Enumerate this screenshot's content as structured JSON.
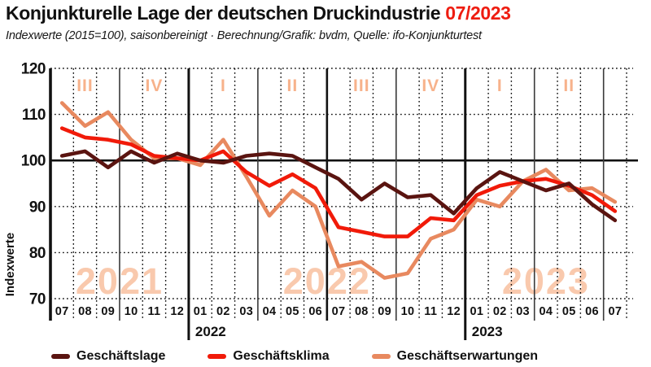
{
  "header": {
    "title": "Konjunkturelle Lage der deutschen Druckindustrie",
    "title_period": "07/2023",
    "subtitle": "Indexwerte (2015=100), saisonbereinigt · Berechnung/Grafik: bvdm, Quelle: ifo-Konjunkturtest"
  },
  "colors": {
    "accent_red": "#ee1c10",
    "text": "#111111",
    "quarter_label": "#f7b28b",
    "year_watermark": "#f9c9ad"
  },
  "chart_data": {
    "type": "line",
    "title": "Konjunkturelle Lage der deutschen Druckindustrie 07/2023",
    "subtitle": "Indexwerte (2015=100), saisonbereinigt · Berechnung/Grafik: bvdm, Quelle: ifo-Konjunkturtest",
    "ylabel": "Indexwerte",
    "ylim": [
      70,
      120
    ],
    "yticks": [
      120,
      110,
      100,
      90,
      80,
      70
    ],
    "grid": "dotted monthly/10pt grid, solid line at 100, solid quarter boundaries, thick year boundaries",
    "legend_position": "bottom",
    "x_months": [
      "07",
      "08",
      "09",
      "10",
      "11",
      "12",
      "01",
      "02",
      "03",
      "04",
      "05",
      "06",
      "07",
      "08",
      "09",
      "10",
      "11",
      "12",
      "01",
      "02",
      "03",
      "04",
      "05",
      "06",
      "07"
    ],
    "year_row_labels": [
      {
        "label": "2022",
        "boundary_index": 6
      },
      {
        "label": "2023",
        "boundary_index": 18
      }
    ],
    "quarter_labels": [
      {
        "label": "III",
        "month_index": 1
      },
      {
        "label": "IV",
        "month_index": 4
      },
      {
        "label": "I",
        "month_index": 7
      },
      {
        "label": "II",
        "month_index": 10
      },
      {
        "label": "III",
        "month_index": 13
      },
      {
        "label": "IV",
        "month_index": 16
      },
      {
        "label": "I",
        "month_index": 19
      },
      {
        "label": "II",
        "month_index": 22
      }
    ],
    "year_watermarks": [
      {
        "label": "2021",
        "span": [
          0,
          5
        ]
      },
      {
        "label": "2022",
        "span": [
          6,
          17
        ]
      },
      {
        "label": "2023",
        "span": [
          18,
          24
        ]
      }
    ],
    "boundaries": {
      "quarter_after_index": [
        2,
        8,
        14,
        20,
        23
      ],
      "halfyear_after_index": [
        11
      ],
      "year_after_index": [
        5,
        17
      ]
    },
    "series": [
      {
        "name": "Geschäftslage",
        "color": "#5a1410",
        "values": [
          101,
          102,
          98.5,
          102,
          99.5,
          101.5,
          100,
          99.5,
          101,
          101.5,
          101,
          98.5,
          96,
          91.5,
          95,
          92,
          92.5,
          88.5,
          94,
          97.5,
          95.5,
          93.5,
          95,
          90.5,
          87
        ]
      },
      {
        "name": "Geschäftsklima",
        "color": "#f11a09",
        "values": [
          107,
          105,
          104.5,
          103.5,
          101,
          100.5,
          100,
          102,
          97.5,
          94.5,
          97,
          94,
          85.5,
          84.5,
          83.5,
          83.5,
          87.5,
          87,
          92.5,
          94.5,
          95.5,
          96,
          94.5,
          92.5,
          89
        ]
      },
      {
        "name": "Geschäftserwartungen",
        "color": "#e8895f",
        "values": [
          112.5,
          107.5,
          110.5,
          104.5,
          100.5,
          100.5,
          99,
          104.5,
          96.5,
          88,
          93.5,
          90,
          77,
          78,
          74.5,
          75.5,
          83,
          85,
          91.5,
          90,
          95.5,
          98,
          93.5,
          94,
          91
        ]
      }
    ]
  },
  "legend": {
    "items": [
      "Geschäftslage",
      "Geschäftsklima",
      "Geschäftserwartungen"
    ]
  }
}
